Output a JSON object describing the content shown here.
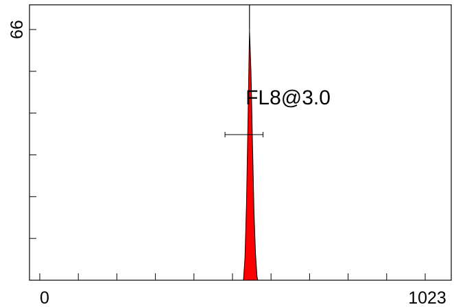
{
  "chart_data": {
    "type": "area",
    "title": "",
    "xlabel": "",
    "ylabel": "",
    "xlim": [
      0,
      1023
    ],
    "ylim": [
      0,
      66
    ],
    "x_tick_labels": [
      "0",
      "1023"
    ],
    "y_tick_labels": [
      "66"
    ],
    "series": [
      {
        "color": "#ff0000",
        "x": [
          537,
          541,
          545,
          549,
          553,
          557,
          561,
          565,
          569,
          573,
          575
        ],
        "y": [
          0,
          6,
          20,
          42,
          66,
          55,
          36,
          18,
          7,
          1,
          0
        ]
      }
    ],
    "annotations": [
      {
        "text": "FL8@3.0",
        "marker_range": [
          488,
          589
        ]
      }
    ]
  }
}
